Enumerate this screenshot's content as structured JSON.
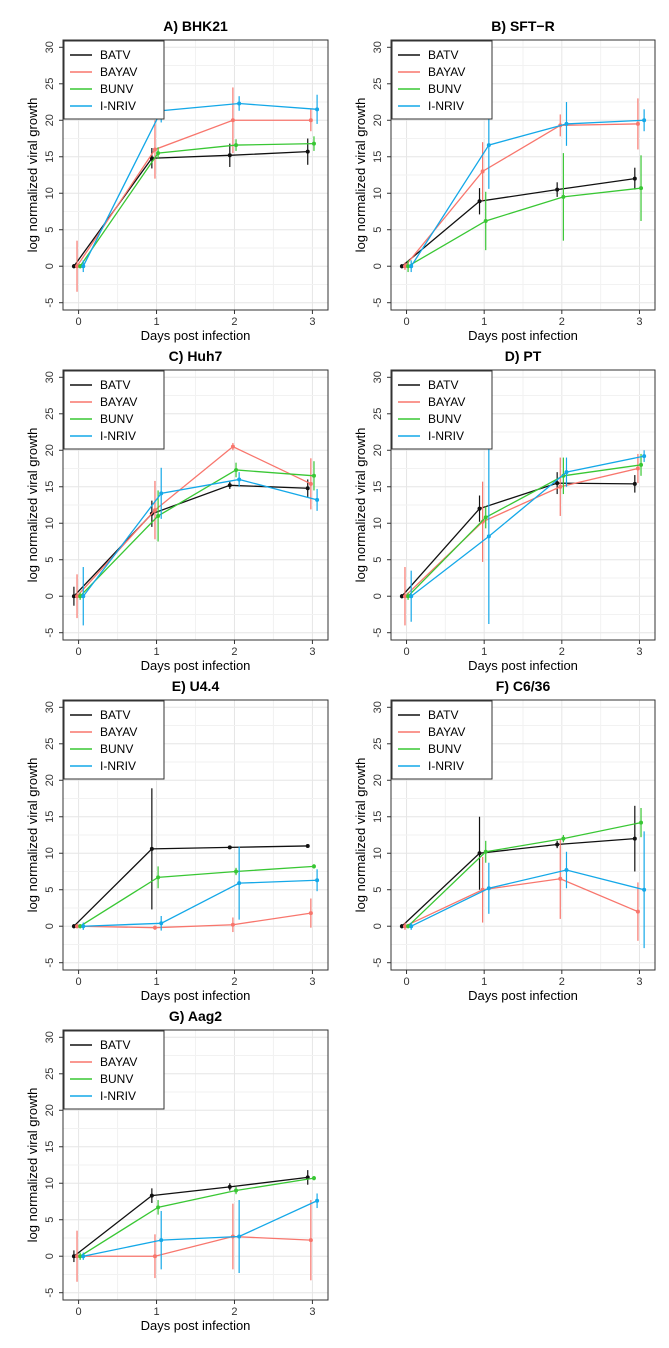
{
  "colors": {
    "BATV": "#111111",
    "BAYAV": "#f8766d",
    "BUNV": "#39c734",
    "I-NRIV": "#14a8e8"
  },
  "chart_data": [
    {
      "type": "line",
      "title": "A) BHK21",
      "xlabel": "Days post infection",
      "ylabel": "log normalized viral growth",
      "xlim": [
        -0.2,
        3.2
      ],
      "ylim": [
        -6,
        31
      ],
      "xticks": [
        0,
        1,
        2,
        3
      ],
      "yticks": [
        -5,
        0,
        5,
        10,
        15,
        20,
        25,
        30
      ],
      "legend": "top-left",
      "grid": true,
      "series": [
        {
          "name": "BATV",
          "x": [
            0,
            1,
            2,
            3
          ],
          "y": [
            0,
            14.8,
            15.2,
            15.7
          ],
          "err": [
            0.3,
            1.4,
            1.6,
            1.8
          ]
        },
        {
          "name": "BAYAV",
          "x": [
            0,
            1,
            2,
            3
          ],
          "y": [
            0,
            16.0,
            20.0,
            20.0
          ],
          "err": [
            3.5,
            4.0,
            4.5,
            1.5
          ]
        },
        {
          "name": "BUNV",
          "x": [
            0,
            1,
            2,
            3
          ],
          "y": [
            0,
            15.5,
            16.6,
            16.8
          ],
          "err": [
            0.3,
            0.8,
            0.8,
            1.0
          ]
        },
        {
          "name": "I-NRIV",
          "x": [
            0,
            1,
            2,
            3
          ],
          "y": [
            0,
            21.3,
            22.3,
            21.5
          ],
          "err": [
            0.8,
            1.6,
            1.0,
            2.0
          ]
        }
      ]
    },
    {
      "type": "line",
      "title": "B) SFT−R",
      "xlabel": "Days post infection",
      "ylabel": "log normalized viral growth",
      "xlim": [
        -0.2,
        3.2
      ],
      "ylim": [
        -6,
        31
      ],
      "xticks": [
        0,
        1,
        2,
        3
      ],
      "yticks": [
        -5,
        0,
        5,
        10,
        15,
        20,
        25,
        30
      ],
      "legend": "top-left",
      "grid": true,
      "series": [
        {
          "name": "BATV",
          "x": [
            0,
            1,
            2,
            3
          ],
          "y": [
            0,
            8.9,
            10.5,
            12.0
          ],
          "err": [
            0.3,
            1.8,
            1.0,
            1.5
          ]
        },
        {
          "name": "BAYAV",
          "x": [
            0,
            1,
            2,
            3
          ],
          "y": [
            0,
            13.0,
            19.3,
            19.5
          ],
          "err": [
            0.5,
            4.0,
            1.5,
            3.5
          ]
        },
        {
          "name": "BUNV",
          "x": [
            0,
            1,
            2,
            3
          ],
          "y": [
            0,
            6.2,
            9.5,
            10.7
          ],
          "err": [
            0.8,
            4.0,
            6.0,
            4.5
          ]
        },
        {
          "name": "I-NRIV",
          "x": [
            0,
            1,
            2,
            3
          ],
          "y": [
            0,
            16.6,
            19.5,
            20.0
          ],
          "err": [
            0.8,
            6.0,
            3.0,
            1.5
          ]
        }
      ]
    },
    {
      "type": "line",
      "title": "C) Huh7",
      "xlabel": "Days post infection",
      "ylabel": "log normalized viral growth",
      "xlim": [
        -0.2,
        3.2
      ],
      "ylim": [
        -6,
        31
      ],
      "xticks": [
        0,
        1,
        2,
        3
      ],
      "yticks": [
        -5,
        0,
        5,
        10,
        15,
        20,
        25,
        30
      ],
      "legend": "top-left",
      "grid": true,
      "series": [
        {
          "name": "BATV",
          "x": [
            0,
            1,
            2,
            3
          ],
          "y": [
            0,
            11.3,
            15.2,
            14.8
          ],
          "err": [
            1.3,
            1.8,
            0.5,
            1.2
          ]
        },
        {
          "name": "BAYAV",
          "x": [
            0,
            1,
            2,
            3
          ],
          "y": [
            0,
            11.8,
            20.5,
            15.4
          ],
          "err": [
            3.0,
            4.0,
            0.5,
            3.5
          ]
        },
        {
          "name": "BUNV",
          "x": [
            0,
            1,
            2,
            3
          ],
          "y": [
            0,
            11.0,
            17.3,
            16.5
          ],
          "err": [
            0.5,
            3.5,
            1.0,
            2.0
          ]
        },
        {
          "name": "I-NRIV",
          "x": [
            0,
            1,
            2,
            3
          ],
          "y": [
            0,
            14.1,
            16.0,
            13.2
          ],
          "err": [
            4.0,
            3.5,
            1.0,
            1.5
          ]
        }
      ]
    },
    {
      "type": "line",
      "title": "D) PT",
      "xlabel": "Days post infection",
      "ylabel": "log normalized viral growth",
      "xlim": [
        -0.2,
        3.2
      ],
      "ylim": [
        -6,
        31
      ],
      "xticks": [
        0,
        1,
        2,
        3
      ],
      "yticks": [
        -5,
        0,
        5,
        10,
        15,
        20,
        25,
        30
      ],
      "legend": "top-left",
      "grid": true,
      "series": [
        {
          "name": "BATV",
          "x": [
            0,
            1,
            2,
            3
          ],
          "y": [
            0,
            12.0,
            15.5,
            15.4
          ],
          "err": [
            0.3,
            1.8,
            1.5,
            1.2
          ]
        },
        {
          "name": "BAYAV",
          "x": [
            0,
            1,
            2,
            3
          ],
          "y": [
            0,
            10.2,
            15.0,
            17.5
          ],
          "err": [
            4.0,
            5.5,
            4.0,
            2.0
          ]
        },
        {
          "name": "BUNV",
          "x": [
            0,
            1,
            2,
            3
          ],
          "y": [
            0,
            10.8,
            16.5,
            18.0
          ],
          "err": [
            0.5,
            1.5,
            2.5,
            1.5
          ]
        },
        {
          "name": "I-NRIV",
          "x": [
            0,
            1,
            2,
            3
          ],
          "y": [
            0,
            8.2,
            17.0,
            19.2
          ],
          "err": [
            3.5,
            12.0,
            2.0,
            0.8
          ]
        }
      ]
    },
    {
      "type": "line",
      "title": "E) U4.4",
      "xlabel": "Days post infection",
      "ylabel": "log normalized viral growth",
      "xlim": [
        -0.2,
        3.2
      ],
      "ylim": [
        -6,
        31
      ],
      "xticks": [
        0,
        1,
        2,
        3
      ],
      "yticks": [
        -5,
        0,
        5,
        10,
        15,
        20,
        25,
        30
      ],
      "legend": "top-left",
      "grid": true,
      "series": [
        {
          "name": "BATV",
          "x": [
            0,
            1,
            2,
            3
          ],
          "y": [
            0,
            10.6,
            10.8,
            11.0
          ],
          "err": [
            0.3,
            8.3,
            0.2,
            0.2
          ]
        },
        {
          "name": "BAYAV",
          "x": [
            0,
            1,
            2,
            3
          ],
          "y": [
            0,
            -0.2,
            0.2,
            1.8
          ],
          "err": [
            0.3,
            0.3,
            1.0,
            2.0
          ]
        },
        {
          "name": "BUNV",
          "x": [
            0,
            1,
            2,
            3
          ],
          "y": [
            0,
            6.7,
            7.5,
            8.2
          ],
          "err": [
            0.3,
            1.5,
            0.5,
            0.3
          ]
        },
        {
          "name": "I-NRIV",
          "x": [
            0,
            1,
            2,
            3
          ],
          "y": [
            0,
            0.4,
            5.9,
            6.3
          ],
          "err": [
            0.5,
            1.0,
            5.0,
            1.5
          ]
        }
      ]
    },
    {
      "type": "line",
      "title": "F) C6/36",
      "xlabel": "Days post infection",
      "ylabel": "log normalized viral growth",
      "xlim": [
        -0.2,
        3.2
      ],
      "ylim": [
        -6,
        31
      ],
      "xticks": [
        0,
        1,
        2,
        3
      ],
      "yticks": [
        -5,
        0,
        5,
        10,
        15,
        20,
        25,
        30
      ],
      "legend": "top-left",
      "grid": true,
      "series": [
        {
          "name": "BATV",
          "x": [
            0,
            1,
            2,
            3
          ],
          "y": [
            0,
            10.0,
            11.2,
            12.0
          ],
          "err": [
            0.3,
            5.0,
            0.5,
            4.5
          ]
        },
        {
          "name": "BAYAV",
          "x": [
            0,
            1,
            2,
            3
          ],
          "y": [
            0,
            5.0,
            6.5,
            2.0
          ],
          "err": [
            0.5,
            4.5,
            5.5,
            4.0
          ]
        },
        {
          "name": "BUNV",
          "x": [
            0,
            1,
            2,
            3
          ],
          "y": [
            0,
            10.2,
            12.0,
            14.2
          ],
          "err": [
            0.3,
            1.5,
            0.5,
            2.0
          ]
        },
        {
          "name": "I-NRIV",
          "x": [
            0,
            1,
            2,
            3
          ],
          "y": [
            0,
            5.2,
            7.7,
            5.0
          ],
          "err": [
            0.5,
            3.5,
            2.5,
            8.0
          ]
        }
      ]
    },
    {
      "type": "line",
      "title": "G) Aag2",
      "xlabel": "Days post infection",
      "ylabel": "log normalized viral growth",
      "xlim": [
        -0.2,
        3.2
      ],
      "ylim": [
        -6,
        31
      ],
      "xticks": [
        0,
        1,
        2,
        3
      ],
      "yticks": [
        -5,
        0,
        5,
        10,
        15,
        20,
        25,
        30
      ],
      "legend": "top-left",
      "grid": true,
      "series": [
        {
          "name": "BATV",
          "x": [
            0,
            1,
            2,
            3
          ],
          "y": [
            0,
            8.3,
            9.5,
            10.8
          ],
          "err": [
            0.8,
            1.0,
            0.5,
            1.0
          ]
        },
        {
          "name": "BAYAV",
          "x": [
            0,
            1,
            2,
            3
          ],
          "y": [
            0,
            0.0,
            2.7,
            2.2
          ],
          "err": [
            3.5,
            3.0,
            4.5,
            5.5
          ]
        },
        {
          "name": "BUNV",
          "x": [
            0,
            1,
            2,
            3
          ],
          "y": [
            0,
            6.7,
            9.0,
            10.7
          ],
          "err": [
            0.5,
            1.0,
            0.5,
            0.3
          ]
        },
        {
          "name": "I-NRIV",
          "x": [
            0,
            1,
            2,
            3
          ],
          "y": [
            0,
            2.2,
            2.7,
            7.6
          ],
          "err": [
            0.5,
            4.0,
            5.0,
            1.0
          ]
        }
      ]
    }
  ]
}
